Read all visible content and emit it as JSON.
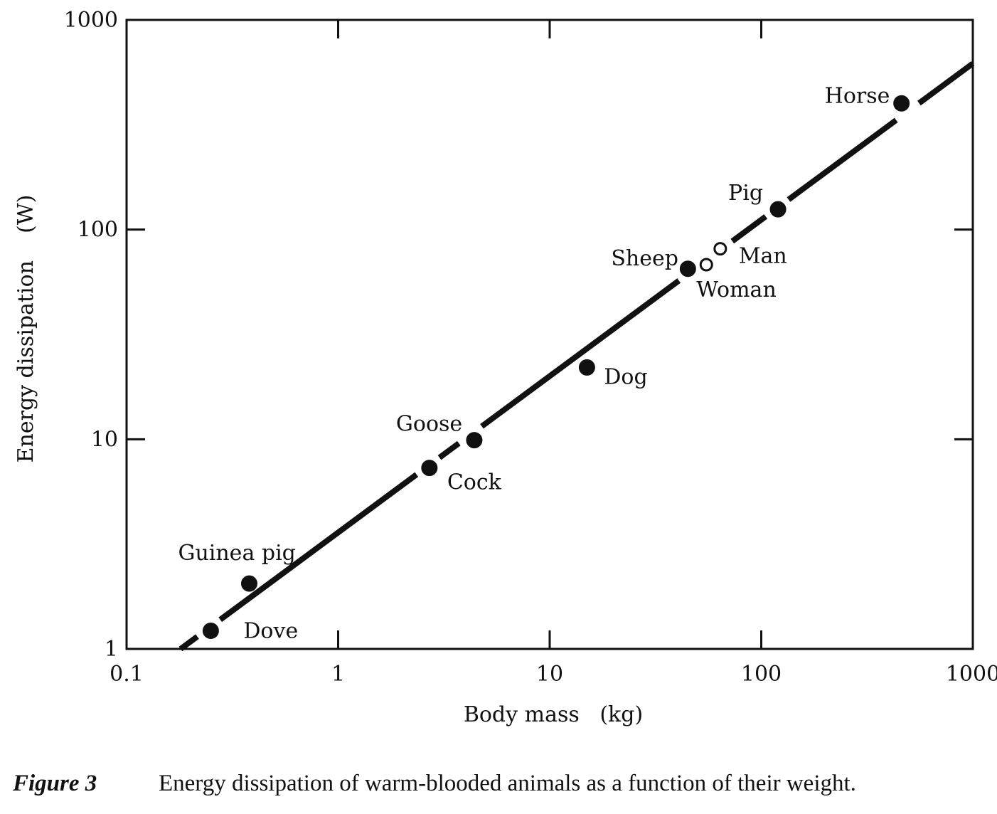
{
  "chart_data": {
    "type": "scatter",
    "x_scale": "log",
    "y_scale": "log",
    "xlim": [
      0.1,
      1000
    ],
    "ylim": [
      1,
      1000
    ],
    "xlabel": "Body mass   (kg)",
    "ylabel": "Energy dissipation    (W)",
    "x_ticks": [
      "0.1",
      "1",
      "10",
      "100",
      "1000"
    ],
    "y_ticks": [
      "1",
      "10",
      "100",
      "1000"
    ],
    "grid": false,
    "points": [
      {
        "name": "Dove",
        "x": 0.25,
        "y": 1.22,
        "filled": true
      },
      {
        "name": "Guinea pig",
        "x": 0.38,
        "y": 2.05,
        "filled": true
      },
      {
        "name": "Cock",
        "x": 2.7,
        "y": 7.3,
        "filled": true
      },
      {
        "name": "Goose",
        "x": 4.4,
        "y": 9.9,
        "filled": true
      },
      {
        "name": "Dog",
        "x": 15,
        "y": 22,
        "filled": true
      },
      {
        "name": "Sheep",
        "x": 45,
        "y": 65,
        "filled": true
      },
      {
        "name": "Woman",
        "x": 55,
        "y": 68,
        "filled": false
      },
      {
        "name": "Man",
        "x": 64,
        "y": 81,
        "filled": false
      },
      {
        "name": "Pig",
        "x": 120,
        "y": 125,
        "filled": true
      },
      {
        "name": "Horse",
        "x": 460,
        "y": 400,
        "filled": true
      }
    ],
    "fit_line": {
      "x": [
        0.18,
        1000
      ],
      "y": [
        1.0,
        620
      ]
    }
  },
  "caption": {
    "figure_label": "Figure 3",
    "text": "Energy dissipation of warm-blooded animals as a function of their weight."
  }
}
